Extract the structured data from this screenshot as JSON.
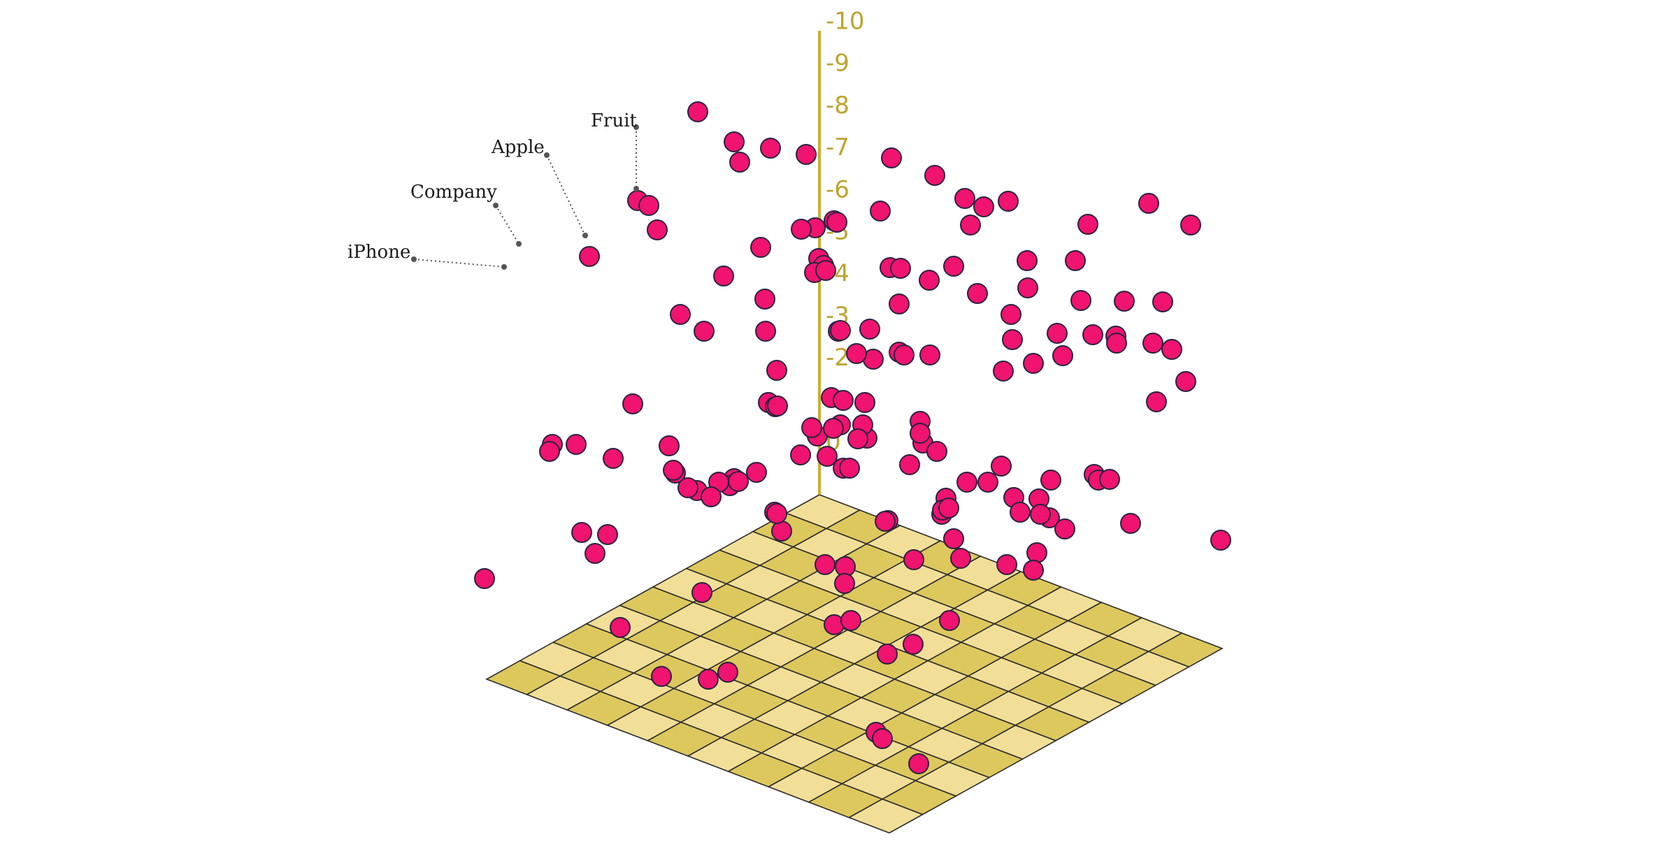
{
  "chart_data": {
    "type": "scatter",
    "title": "",
    "z_ticks": [
      "0",
      "1",
      "2",
      "3",
      "4",
      "5",
      "6",
      "7",
      "8",
      "9",
      "10"
    ],
    "zlim": [
      0,
      10
    ],
    "floor_grid": {
      "rows": 10,
      "cols": 10
    },
    "colors": {
      "point_fill": "#f0136f",
      "point_stroke": "#2a2140",
      "axis": "#c9ae33",
      "floor_light": "#f1df98",
      "floor_dark": "#ddc85e",
      "grid_line": "#2b2b2b",
      "leader_line": "#555555"
    },
    "labeled_points": [
      {
        "label": "Fruit"
      },
      {
        "label": "Apple"
      },
      {
        "label": "Company"
      },
      {
        "label": "iPhone"
      }
    ],
    "points_count_note": ""
  }
}
